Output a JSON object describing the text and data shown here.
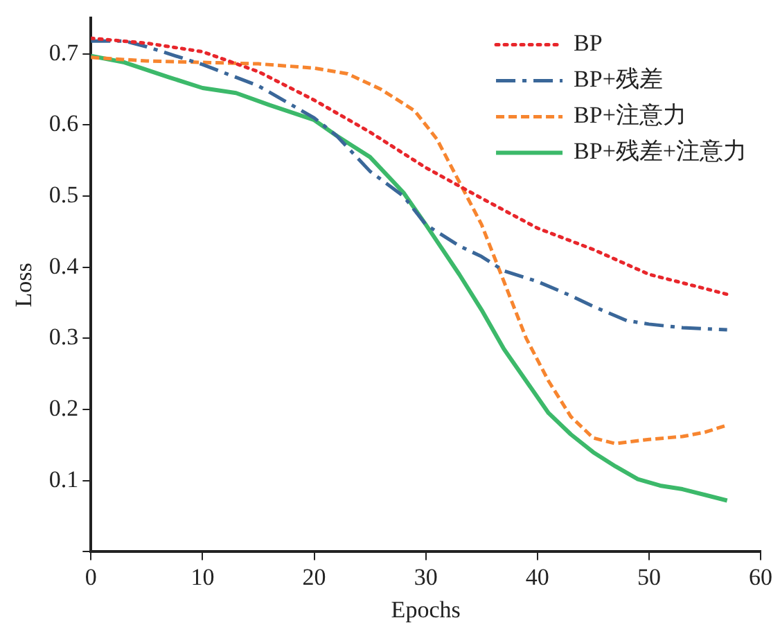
{
  "chart_data": {
    "type": "line",
    "xlabel": "Epochs",
    "ylabel": "Loss",
    "xlim": [
      0,
      60
    ],
    "xticks": [
      0,
      10,
      20,
      30,
      40,
      50,
      60
    ],
    "ylim": [
      0,
      0.75
    ],
    "yticks": [
      {
        "value": 0,
        "label": null
      },
      0.1,
      0.2,
      0.3,
      0.4,
      0.5,
      0.6,
      0.7
    ],
    "grid": false,
    "legend": "top right",
    "marker": "none",
    "series": [
      {
        "name": "BP",
        "color": "#e8262b",
        "line_style": "dotted",
        "x": [
          0,
          5,
          10,
          15,
          20,
          25,
          30,
          35,
          40,
          45,
          50,
          55,
          57
        ],
        "values": [
          0.722,
          0.715,
          0.703,
          0.675,
          0.635,
          0.59,
          0.54,
          0.497,
          0.455,
          0.425,
          0.39,
          0.37,
          0.362
        ]
      },
      {
        "name": "BP+残差",
        "color": "#3a6799",
        "line_style": "dashdot",
        "x": [
          0,
          3,
          5,
          10,
          15,
          20,
          22,
          25,
          28,
          30,
          33,
          35,
          37,
          40,
          43,
          45,
          48,
          50,
          53,
          57
        ],
        "values": [
          0.718,
          0.718,
          0.71,
          0.685,
          0.655,
          0.61,
          0.585,
          0.535,
          0.5,
          0.46,
          0.43,
          0.415,
          0.395,
          0.38,
          0.36,
          0.345,
          0.325,
          0.32,
          0.315,
          0.312
        ]
      },
      {
        "name": "BP+注意力",
        "color": "#f7852f",
        "line_style": "dashed",
        "x": [
          0,
          5,
          10,
          15,
          20,
          23,
          26,
          29,
          31,
          33,
          35,
          37,
          39,
          41,
          43,
          45,
          47,
          50,
          53,
          55,
          57
        ],
        "values": [
          0.695,
          0.69,
          0.688,
          0.686,
          0.68,
          0.672,
          0.65,
          0.62,
          0.58,
          0.52,
          0.46,
          0.38,
          0.3,
          0.24,
          0.19,
          0.16,
          0.152,
          0.158,
          0.162,
          0.168,
          0.178
        ]
      },
      {
        "name": "BP+残差+注意力",
        "color": "#3cb96a",
        "line_style": "solid",
        "x": [
          0,
          3,
          7,
          10,
          13,
          16,
          20,
          22,
          25,
          28,
          30,
          33,
          35,
          37,
          39,
          41,
          43,
          45,
          47,
          49,
          51,
          53,
          55,
          57
        ],
        "values": [
          0.697,
          0.688,
          0.667,
          0.652,
          0.645,
          0.628,
          0.607,
          0.585,
          0.555,
          0.505,
          0.46,
          0.39,
          0.34,
          0.285,
          0.24,
          0.195,
          0.165,
          0.14,
          0.12,
          0.102,
          0.093,
          0.088,
          0.08,
          0.072
        ]
      }
    ]
  }
}
